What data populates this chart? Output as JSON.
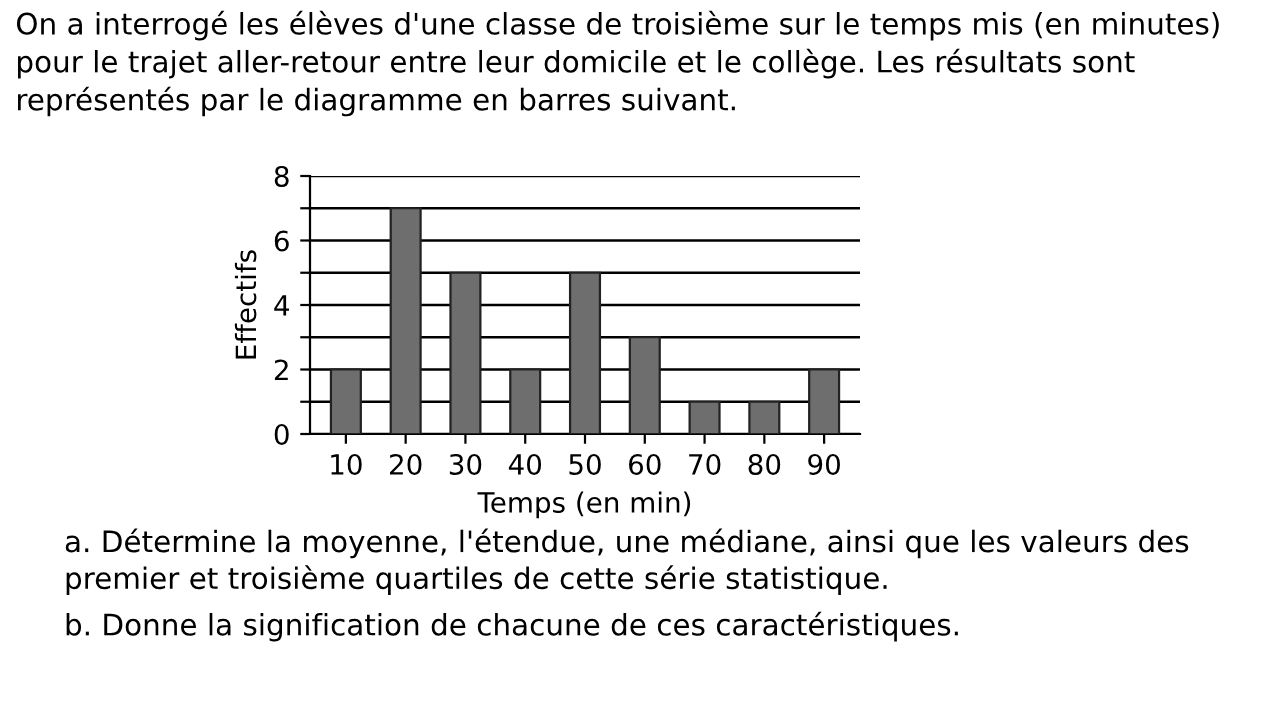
{
  "chart_data": {
    "type": "bar",
    "title": "On a interrogé les élèves d'une classe de troisième sur le temps mis (en minutes) pour le trajet aller-retour entre leur domicile et le collège. Les résultats sont représentés par le diagramme en barres suivant.",
    "xlabel": "Temps (en min)",
    "ylabel": "Effectifs",
    "categories": [
      "10",
      "20",
      "30",
      "40",
      "50",
      "60",
      "70",
      "80",
      "90"
    ],
    "values": [
      2,
      7,
      5,
      2,
      5,
      3,
      1,
      1,
      2
    ],
    "color": "#6e6e6e",
    "ylim": [
      0,
      8
    ],
    "yticks": [
      0,
      {
        "value": 1,
        "label": null
      },
      2,
      {
        "value": 3,
        "label": null
      },
      4,
      {
        "value": 5,
        "label": null
      },
      6,
      {
        "value": 7,
        "label": null
      },
      8
    ],
    "grid": "y",
    "annotations": [
      "a. Détermine la moyenne, l'étendue, une médiane, ainsi que les valeurs des premier et troisième quartiles de cette série statistique.",
      "b. Donne la signification de chacune de ces caractéristiques."
    ]
  }
}
